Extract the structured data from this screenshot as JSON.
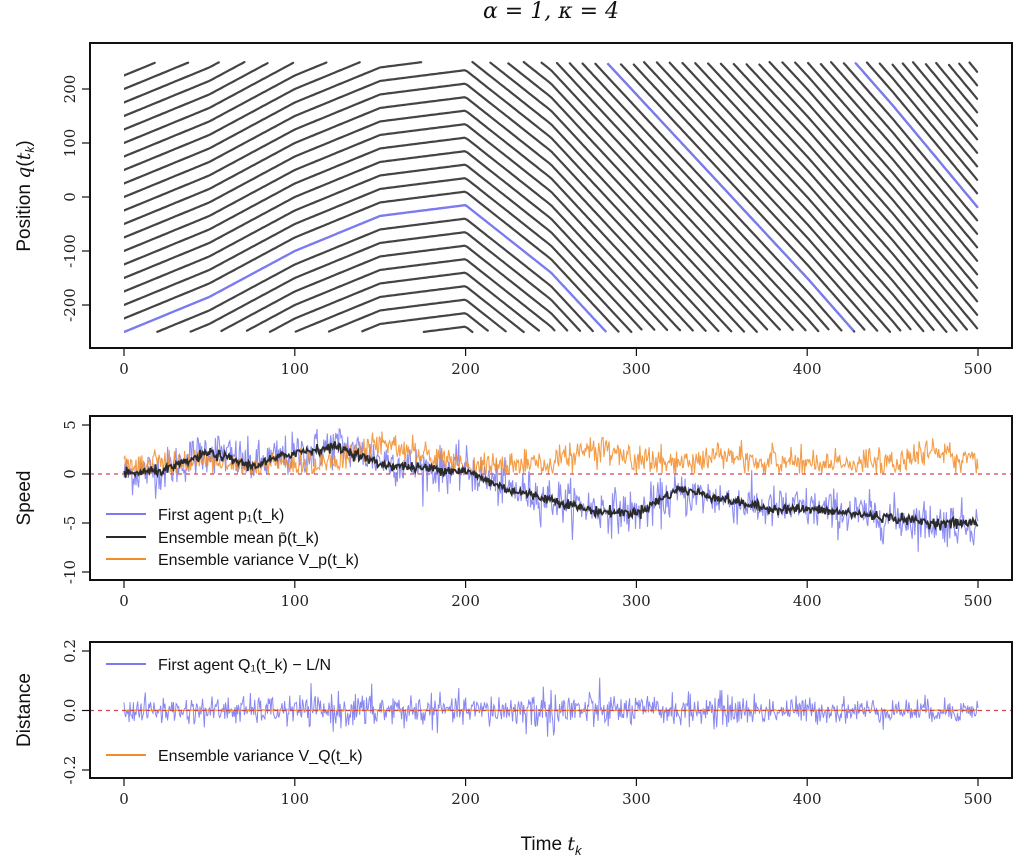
{
  "title": "α = 1, κ = 4",
  "xlabel": "Time t_k",
  "chart_data": [
    {
      "id": "position",
      "type": "line",
      "ylabel": "Position q(t_k)",
      "xlim": [
        0,
        500
      ],
      "ylim": [
        -250,
        250
      ],
      "xticks": [
        0,
        100,
        200,
        300,
        400,
        500
      ],
      "yticks": [
        -200,
        -100,
        0,
        100,
        200
      ],
      "grid": false,
      "n_agents": 20,
      "domain_length": 500,
      "mean_displacement": {
        "t": [
          0,
          50,
          100,
          150,
          200,
          250,
          300,
          350,
          400,
          450,
          500
        ],
        "shift": [
          0,
          65,
          150,
          215,
          235,
          110,
          -60,
          -230,
          -400,
          -580,
          -770
        ]
      },
      "highlighted_agent": {
        "name": "First agent",
        "color": "#7b7bf0",
        "start": -250
      },
      "agent_color": "#444444"
    },
    {
      "id": "speed",
      "type": "line",
      "ylabel": "Speed",
      "xlim": [
        0,
        500
      ],
      "ylim": [
        -10,
        5
      ],
      "xticks": [
        0,
        100,
        200,
        300,
        400,
        500
      ],
      "yticks": [
        -10,
        -5,
        0,
        5
      ],
      "reference_line": 0,
      "series": [
        {
          "name": "First agent p₁(t_k)",
          "color": "#7b7bf0",
          "noise": 1.1,
          "t": [
            0,
            25,
            50,
            75,
            100,
            125,
            150,
            175,
            200,
            225,
            250,
            275,
            300,
            325,
            350,
            375,
            400,
            425,
            450,
            475,
            500
          ],
          "y": [
            0,
            0.5,
            2.5,
            1.0,
            2.0,
            3.0,
            1.5,
            0.5,
            0.5,
            -1.5,
            -2.5,
            -3.5,
            -4.0,
            -2.0,
            -2.5,
            -3.5,
            -3.5,
            -4.0,
            -4.5,
            -5.0,
            -5.0
          ]
        },
        {
          "name": "Ensemble mean p̄(t_k)",
          "color": "#2a2a2a",
          "noise": 0.25,
          "t": [
            0,
            25,
            50,
            75,
            100,
            125,
            150,
            175,
            200,
            225,
            250,
            275,
            300,
            325,
            350,
            375,
            400,
            425,
            450,
            475,
            500
          ],
          "y": [
            0,
            0.4,
            2.2,
            0.8,
            2.2,
            2.8,
            1.0,
            0.6,
            0.3,
            -1.6,
            -2.6,
            -3.8,
            -4.0,
            -1.5,
            -2.5,
            -3.5,
            -3.6,
            -4.0,
            -4.5,
            -5.0,
            -5.0
          ]
        },
        {
          "name": "Ensemble variance V_p(t_k)",
          "color": "#f28c28",
          "noise": 0.7,
          "t": [
            0,
            25,
            50,
            75,
            100,
            125,
            150,
            175,
            200,
            225,
            250,
            275,
            300,
            325,
            350,
            375,
            400,
            425,
            450,
            475,
            500
          ],
          "y": [
            0.5,
            0.9,
            0.9,
            0.6,
            0.9,
            1.0,
            3.0,
            1.6,
            0.5,
            0.7,
            0.9,
            2.4,
            1.3,
            0.8,
            1.6,
            1.0,
            0.7,
            0.8,
            0.9,
            2.4,
            0.7
          ]
        }
      ],
      "legend_position": "bottom-left"
    },
    {
      "id": "distance",
      "type": "line",
      "ylabel": "Distance",
      "xlim": [
        0,
        500
      ],
      "ylim": [
        -0.2,
        0.2
      ],
      "xticks": [
        0,
        100,
        200,
        300,
        400,
        500
      ],
      "yticks": [
        -0.2,
        0.0,
        0.2
      ],
      "reference_line": 0,
      "series": [
        {
          "name": "First agent Q₁(t_k) − L/N",
          "color": "#7b7bf0",
          "noise": 0.022,
          "envelope": {
            "t": [
              0,
              100,
              150,
              200,
              250,
              300,
              350,
              400,
              500
            ],
            "amp": [
              1.0,
              1.1,
              1.5,
              1.0,
              1.8,
              1.1,
              1.3,
              1.0,
              0.9
            ]
          }
        },
        {
          "name": "Ensemble variance V_Q(t_k)",
          "color": "#f28c28",
          "noise": 0.0012
        }
      ],
      "legend_position": "left"
    }
  ]
}
